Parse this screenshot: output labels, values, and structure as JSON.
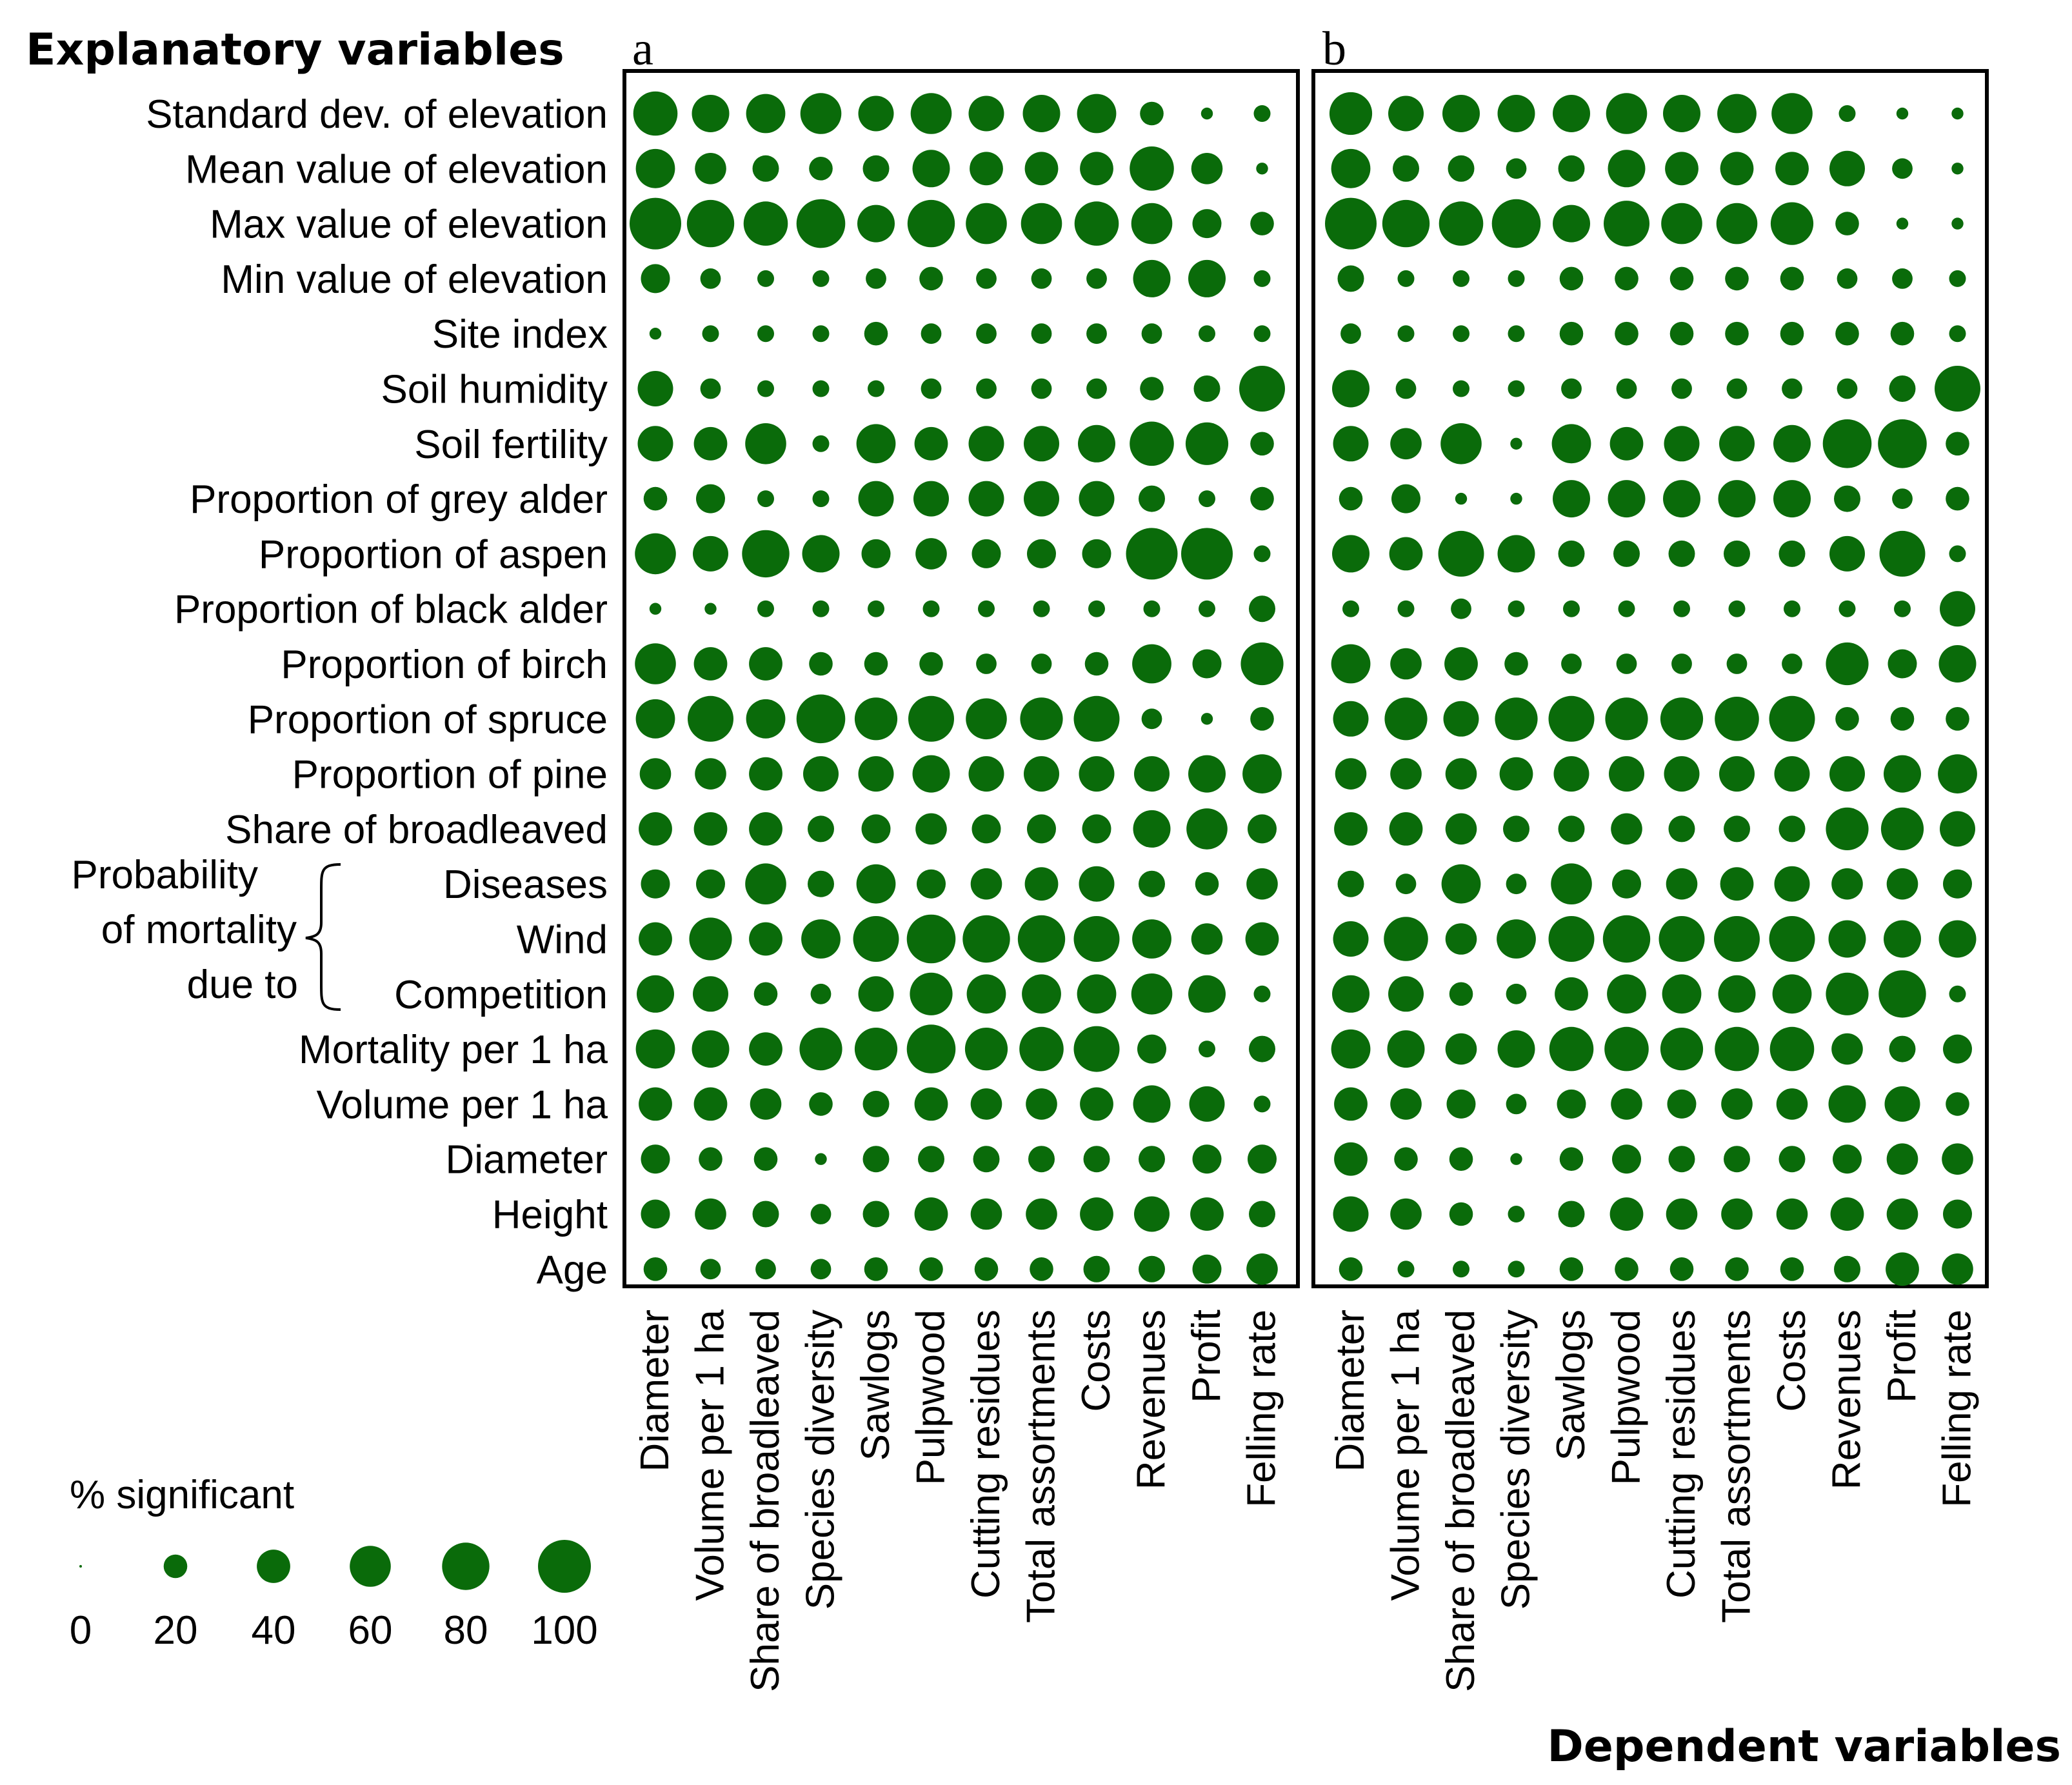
{
  "figure": {
    "explanatory_header": "Explanatory variables",
    "dependent_header": "Dependent variables",
    "mortality_group": {
      "line1": "Probability",
      "line2": "of mortality",
      "line3": "due to"
    },
    "legend": {
      "title": "% significant",
      "sizes": [
        "0",
        "20",
        "40",
        "60",
        "80",
        "100"
      ]
    }
  },
  "chart_data": [
    {
      "type": "scatter",
      "panel_label": "a",
      "columns": [
        "Diameter",
        "Volume per 1 ha",
        "Share of broadleaved",
        "Species diversity",
        "Sawlogs",
        "Pulpwood",
        "Cutting residues",
        "Total assortments",
        "Costs",
        "Revenues",
        "Profit",
        "Felling rate"
      ],
      "rows": [
        "Standard dev. of elevation",
        "Mean value of elevation",
        "Max value of elevation",
        "Min value of elevation",
        "Site index",
        "Soil humidity",
        "Soil fertility",
        "Proportion of grey alder",
        "Proportion of aspen",
        "Proportion of black alder",
        "Proportion of birch",
        "Proportion of spruce",
        "Proportion of pine",
        "Share of broadleaved",
        "Diseases",
        "Wind",
        "Competition",
        "Mortality per 1 ha",
        "Volume per 1 ha",
        "Diameter",
        "Height",
        "Age"
      ],
      "values": [
        [
          70,
          50,
          55,
          60,
          45,
          60,
          45,
          50,
          55,
          20,
          5,
          10
        ],
        [
          55,
          35,
          25,
          20,
          25,
          50,
          40,
          40,
          40,
          70,
          35,
          5
        ],
        [
          95,
          80,
          70,
          85,
          50,
          80,
          60,
          60,
          70,
          60,
          30,
          20
        ],
        [
          30,
          15,
          10,
          10,
          15,
          20,
          15,
          15,
          15,
          50,
          50,
          10
        ],
        [
          5,
          10,
          10,
          10,
          20,
          15,
          15,
          15,
          15,
          15,
          10,
          10
        ],
        [
          45,
          15,
          10,
          10,
          10,
          15,
          15,
          15,
          15,
          20,
          25,
          75
        ],
        [
          45,
          40,
          60,
          10,
          55,
          40,
          45,
          45,
          50,
          70,
          65,
          20
        ],
        [
          20,
          30,
          10,
          10,
          45,
          45,
          45,
          45,
          45,
          25,
          10,
          20
        ],
        [
          60,
          45,
          80,
          50,
          30,
          35,
          30,
          30,
          30,
          95,
          95,
          10
        ],
        [
          5,
          5,
          10,
          10,
          10,
          10,
          10,
          10,
          10,
          10,
          10,
          25
        ],
        [
          60,
          40,
          40,
          20,
          20,
          20,
          15,
          15,
          20,
          55,
          30,
          65
        ],
        [
          55,
          75,
          55,
          85,
          65,
          75,
          60,
          65,
          75,
          15,
          5,
          20
        ],
        [
          35,
          35,
          40,
          45,
          45,
          50,
          45,
          45,
          45,
          45,
          50,
          55
        ],
        [
          40,
          40,
          40,
          25,
          30,
          35,
          30,
          30,
          30,
          50,
          60,
          30
        ],
        [
          30,
          30,
          60,
          25,
          55,
          30,
          35,
          40,
          45,
          25,
          20,
          35
        ],
        [
          40,
          65,
          40,
          55,
          75,
          85,
          80,
          80,
          75,
          55,
          35,
          40
        ],
        [
          50,
          45,
          20,
          15,
          45,
          65,
          55,
          55,
          55,
          60,
          50,
          10
        ],
        [
          55,
          50,
          40,
          65,
          65,
          85,
          65,
          70,
          75,
          30,
          10,
          25
        ],
        [
          40,
          40,
          35,
          20,
          25,
          40,
          35,
          35,
          40,
          50,
          45,
          10
        ],
        [
          30,
          20,
          20,
          5,
          25,
          25,
          25,
          25,
          25,
          25,
          30,
          30
        ],
        [
          30,
          35,
          25,
          15,
          25,
          40,
          35,
          35,
          40,
          45,
          40,
          25
        ],
        [
          20,
          15,
          15,
          15,
          20,
          20,
          20,
          20,
          25,
          25,
          30,
          35
        ]
      ]
    },
    {
      "type": "scatter",
      "panel_label": "b",
      "columns": [
        "Diameter",
        "Volume per 1 ha",
        "Share of broadleaved",
        "Species diversity",
        "Sawlogs",
        "Pulpwood",
        "Cutting residues",
        "Total assortments",
        "Costs",
        "Revenues",
        "Profit",
        "Felling rate"
      ],
      "rows": [
        "Standard dev. of elevation",
        "Mean value of elevation",
        "Max value of elevation",
        "Min value of elevation",
        "Site index",
        "Soil humidity",
        "Soil fertility",
        "Proportion of grey alder",
        "Proportion of aspen",
        "Proportion of black alder",
        "Proportion of birch",
        "Proportion of spruce",
        "Proportion of pine",
        "Share of broadleaved",
        "Diseases",
        "Wind",
        "Competition",
        "Mortality per 1 ha",
        "Volume per 1 ha",
        "Diameter",
        "Height",
        "Age"
      ],
      "values": [
        [
          65,
          45,
          50,
          50,
          50,
          60,
          50,
          55,
          60,
          10,
          5,
          5
        ],
        [
          55,
          25,
          25,
          15,
          25,
          50,
          40,
          40,
          40,
          45,
          15,
          5
        ],
        [
          95,
          80,
          70,
          85,
          50,
          75,
          60,
          60,
          65,
          20,
          5,
          5
        ],
        [
          25,
          10,
          10,
          10,
          20,
          20,
          20,
          20,
          20,
          15,
          15,
          10
        ],
        [
          15,
          10,
          10,
          10,
          20,
          20,
          20,
          20,
          20,
          20,
          20,
          10
        ],
        [
          50,
          15,
          10,
          10,
          15,
          15,
          15,
          15,
          15,
          15,
          25,
          75
        ],
        [
          45,
          35,
          60,
          5,
          55,
          40,
          45,
          45,
          50,
          85,
          85,
          20
        ],
        [
          20,
          30,
          5,
          5,
          50,
          50,
          50,
          50,
          50,
          25,
          15,
          20
        ],
        [
          50,
          40,
          75,
          50,
          25,
          25,
          25,
          25,
          25,
          45,
          75,
          10
        ],
        [
          10,
          10,
          15,
          10,
          10,
          10,
          10,
          10,
          10,
          10,
          10,
          45
        ],
        [
          55,
          35,
          40,
          20,
          15,
          15,
          15,
          15,
          15,
          65,
          30,
          50
        ],
        [
          45,
          65,
          45,
          65,
          75,
          65,
          65,
          70,
          75,
          20,
          20,
          20
        ],
        [
          35,
          35,
          35,
          40,
          45,
          45,
          45,
          45,
          45,
          45,
          50,
          55
        ],
        [
          40,
          40,
          35,
          25,
          25,
          35,
          25,
          25,
          25,
          65,
          65,
          45
        ],
        [
          25,
          15,
          55,
          15,
          60,
          30,
          35,
          40,
          45,
          35,
          35,
          30
        ],
        [
          45,
          70,
          35,
          55,
          75,
          80,
          75,
          75,
          75,
          50,
          50,
          50
        ],
        [
          50,
          45,
          20,
          15,
          40,
          55,
          55,
          50,
          55,
          65,
          80,
          10
        ],
        [
          55,
          50,
          35,
          50,
          70,
          70,
          65,
          70,
          70,
          35,
          25,
          30
        ],
        [
          40,
          35,
          30,
          15,
          30,
          35,
          30,
          35,
          35,
          50,
          45,
          20
        ],
        [
          40,
          20,
          20,
          5,
          20,
          30,
          25,
          25,
          25,
          30,
          35,
          35
        ],
        [
          45,
          35,
          20,
          10,
          25,
          40,
          35,
          35,
          35,
          40,
          35,
          30
        ],
        [
          20,
          10,
          10,
          10,
          20,
          20,
          20,
          20,
          20,
          25,
          40,
          35
        ]
      ]
    }
  ],
  "colors": {
    "dot": "#0a6b0a",
    "frame": "#000000"
  }
}
